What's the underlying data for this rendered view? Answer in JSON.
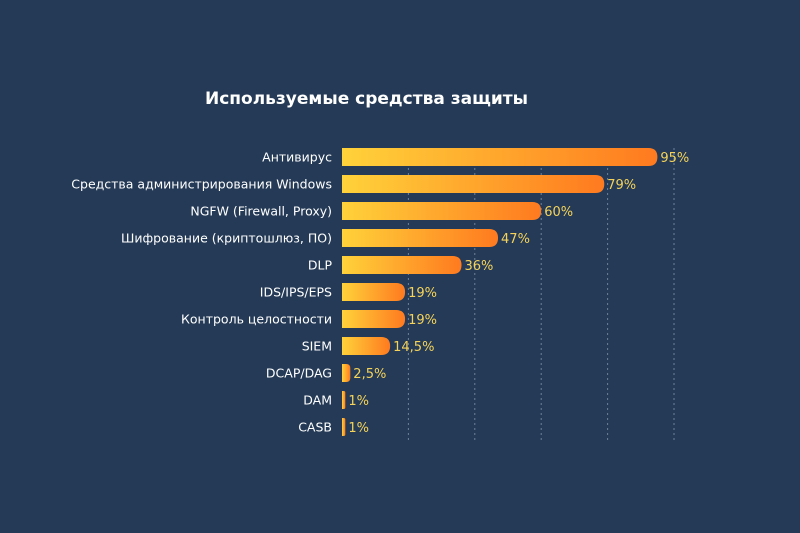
{
  "chart_data": {
    "type": "bar",
    "orientation": "horizontal",
    "title": "Используемые средства защиты",
    "categories": [
      "Антивирус",
      "Средства администрирования Windows",
      "NGFW (Firewall, Proxy)",
      "Шифрование (криптошлюз, ПО)",
      "DLP",
      "IDS/IPS/EPS",
      "Контроль целостности",
      "SIEM",
      "DCAP/DAG",
      "DAM",
      "CASB"
    ],
    "values": [
      95,
      79,
      60,
      47,
      36,
      19,
      19,
      14.5,
      2.5,
      1,
      1
    ],
    "value_labels": [
      "95%",
      "79%",
      "60%",
      "47%",
      "36%",
      "19%",
      "19%",
      "14,5%",
      "2,5%",
      "1%",
      "1%"
    ],
    "xlim": [
      0,
      100
    ],
    "grid": true,
    "legend": "none",
    "colors": {
      "background": "#243a56",
      "bar_start": "#ffd23a",
      "bar_end": "#ff7a1f",
      "value_label": "#f5d35a",
      "category_label": "#ffffff",
      "grid": "#8ea0b6"
    }
  }
}
